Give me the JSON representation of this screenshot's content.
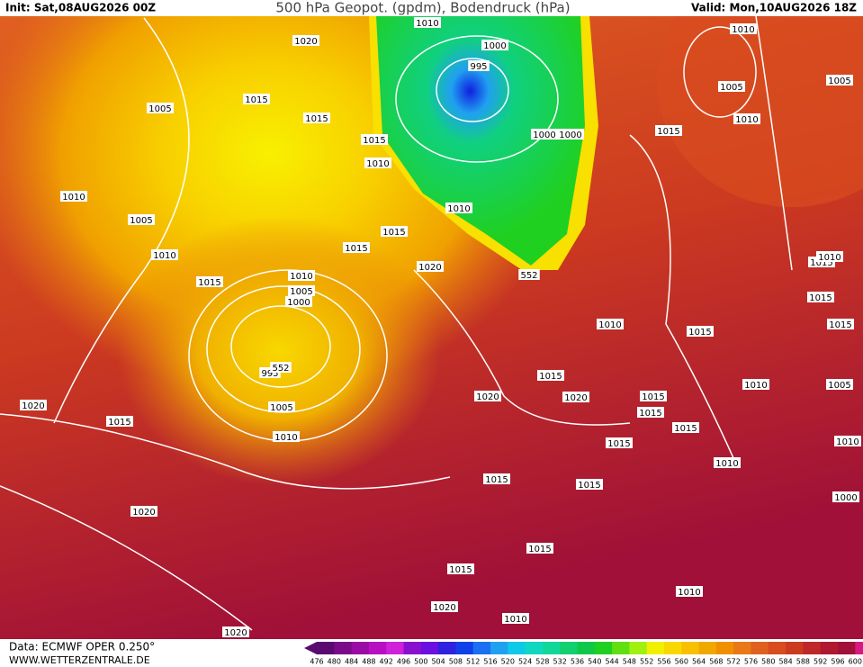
{
  "header": {
    "init": "Init: Sat,08AUG2026 00Z",
    "title": "500 hPa Geopot. (gpdm), Bodendruck (hPa)",
    "valid": "Valid: Mon,10AUG2026 18Z"
  },
  "footer": {
    "source": "Data: ECMWF OPER 0.250°",
    "site": "WWW.WETTERZENTRALE.DE"
  },
  "isobar_labels": [
    "1010",
    "1020",
    "1000",
    "995",
    "1015",
    "1005",
    "1015",
    "1015",
    "1010",
    "1000",
    "1000",
    "1010",
    "1005",
    "1010",
    "1015",
    "1015",
    "1010",
    "1020",
    "552",
    "1015",
    "1010",
    "1005",
    "1000",
    "995",
    "552",
    "1005",
    "1010",
    "1020",
    "1015",
    "1020",
    "1015",
    "1010",
    "1015",
    "1020",
    "1015",
    "1015",
    "1015",
    "1015",
    "1010",
    "1010",
    "1015",
    "1015",
    "1020",
    "1015",
    "1015",
    "1010",
    "1020",
    "1010",
    "1020",
    "1010",
    "1005",
    "1005",
    "1010",
    "1015",
    "1015",
    "1015",
    "1015",
    "1005",
    "1010",
    "1000",
    "1010"
  ],
  "colorbar": {
    "labels": [
      476,
      480,
      484,
      488,
      492,
      496,
      500,
      504,
      508,
      512,
      516,
      520,
      524,
      528,
      532,
      536,
      540,
      544,
      548,
      552,
      556,
      560,
      564,
      568,
      572,
      576,
      580,
      584,
      588,
      592,
      596,
      600
    ],
    "colors": [
      "#5a0a6e",
      "#7a0a8a",
      "#9a0aa5",
      "#b810c0",
      "#d020d8",
      "#8a10d0",
      "#6a10e0",
      "#3020e0",
      "#1040e8",
      "#1a70f0",
      "#20a0f0",
      "#10c8e8",
      "#10d8c0",
      "#10d898",
      "#10d070",
      "#10c848",
      "#20d020",
      "#60e010",
      "#a0f010",
      "#f0f000",
      "#f8d800",
      "#f8c000",
      "#f0a800",
      "#f09000",
      "#e87818",
      "#e06020",
      "#d84c20",
      "#cc3a20",
      "#c02828",
      "#b01830",
      "#a01038",
      "#d81880"
    ]
  }
}
